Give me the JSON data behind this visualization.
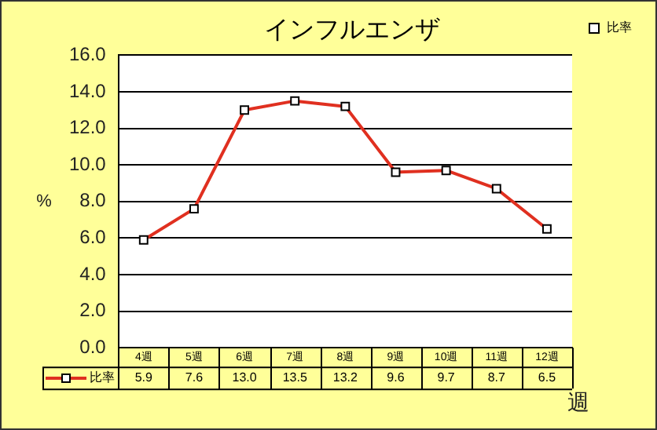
{
  "chart_data": {
    "type": "line",
    "title": "インフルエンザ",
    "xlabel": "週",
    "ylabel": "%",
    "categories": [
      "4週",
      "5週",
      "6週",
      "7週",
      "8週",
      "9週",
      "10週",
      "11週",
      "12週"
    ],
    "series": [
      {
        "name": "比率",
        "color": "#e03020",
        "values": [
          5.9,
          7.6,
          13.0,
          13.5,
          13.2,
          9.6,
          9.7,
          8.7,
          6.5
        ],
        "value_labels": [
          "5.9",
          "7.6",
          "13.0",
          "13.5",
          "13.2",
          "9.6",
          "9.7",
          "8.7",
          "6.5"
        ]
      }
    ],
    "ylim": [
      0,
      16
    ],
    "yticks": [
      {
        "value": 0,
        "label": "0.0"
      },
      {
        "value": 2,
        "label": "2.0"
      },
      {
        "value": 4,
        "label": "4.0"
      },
      {
        "value": 6,
        "label": "6.0"
      },
      {
        "value": 8,
        "label": "8.0"
      },
      {
        "value": 10,
        "label": "10.0"
      },
      {
        "value": 12,
        "label": "12.0"
      },
      {
        "value": 14,
        "label": "14.0"
      },
      {
        "value": 16,
        "label": "16.0"
      }
    ],
    "grid": "y",
    "legend": "top right",
    "marker": "square",
    "line_style": "solid"
  }
}
